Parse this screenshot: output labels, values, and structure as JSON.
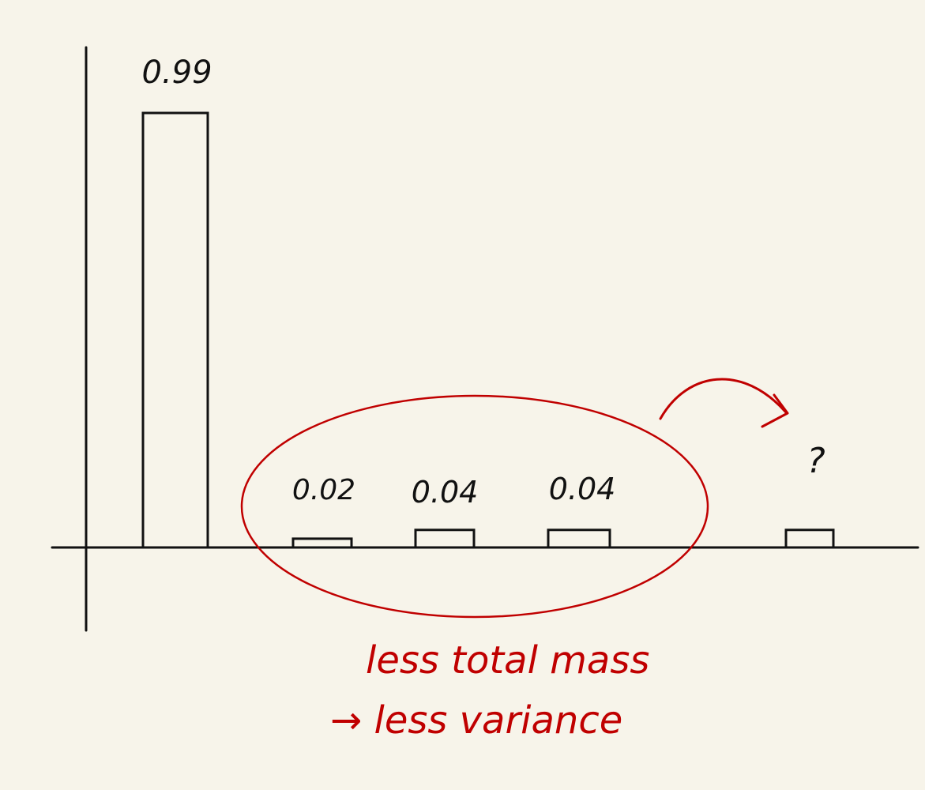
{
  "chart_data": {
    "type": "bar",
    "categories": [
      "",
      "",
      "",
      "",
      ""
    ],
    "values": [
      0.99,
      0.02,
      0.04,
      0.04,
      0.04
    ],
    "data_labels": [
      "0.99",
      "0.02",
      "0.04",
      "0.04",
      "?"
    ],
    "title": "",
    "xlabel": "",
    "ylabel": "",
    "ylim": [
      0,
      1.0
    ],
    "grid": false,
    "annotations": {
      "note_line1": "less total mass",
      "note_line2": "→ less variance",
      "circled_bars": [
        1,
        2,
        3
      ],
      "arrow_to_bar": 4
    }
  },
  "colors": {
    "background": "#f7f4ea",
    "ink": "#111111",
    "annotation": "#c00000"
  }
}
